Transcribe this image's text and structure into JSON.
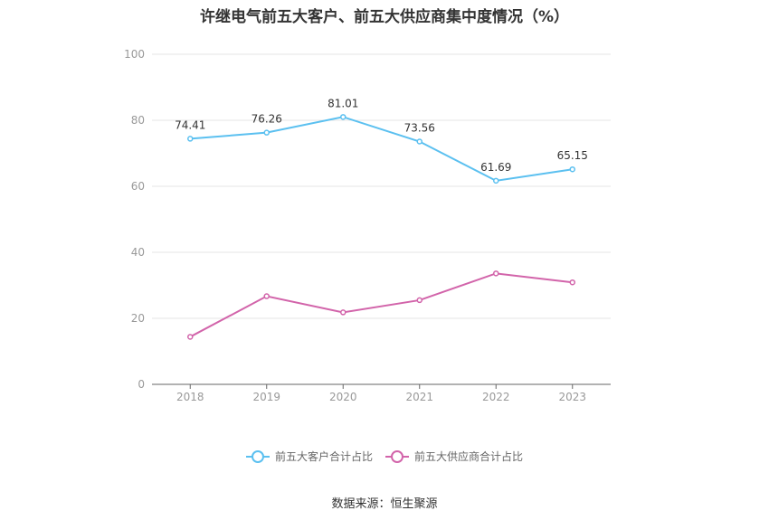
{
  "title": "许继电气前五大客户、前五大供应商集中度情况（%）",
  "source": "数据来源：恒生聚源",
  "chart_data": {
    "type": "line",
    "title": "许继电气前五大客户、前五大供应商集中度情况（%）",
    "xlabel": "",
    "ylabel": "",
    "x": [
      "2018",
      "2019",
      "2020",
      "2021",
      "2022",
      "2023"
    ],
    "ylim": [
      0,
      100
    ],
    "yticks": [
      0,
      20,
      40,
      60,
      80,
      100
    ],
    "grid": true,
    "legend_position": "bottom",
    "series": [
      {
        "name": "前五大客户合计占比",
        "color": "#5bc0f0",
        "values": [
          74.41,
          76.26,
          81.01,
          73.56,
          61.69,
          65.15
        ],
        "labels": [
          "74.41",
          "76.26",
          "81.01",
          "73.56",
          "61.69",
          "65.15"
        ],
        "show_labels": true
      },
      {
        "name": "前五大供应商合计占比",
        "color": "#d264aa",
        "values": [
          14.4,
          26.7,
          21.8,
          25.5,
          33.6,
          30.9
        ],
        "show_labels": false
      }
    ]
  }
}
